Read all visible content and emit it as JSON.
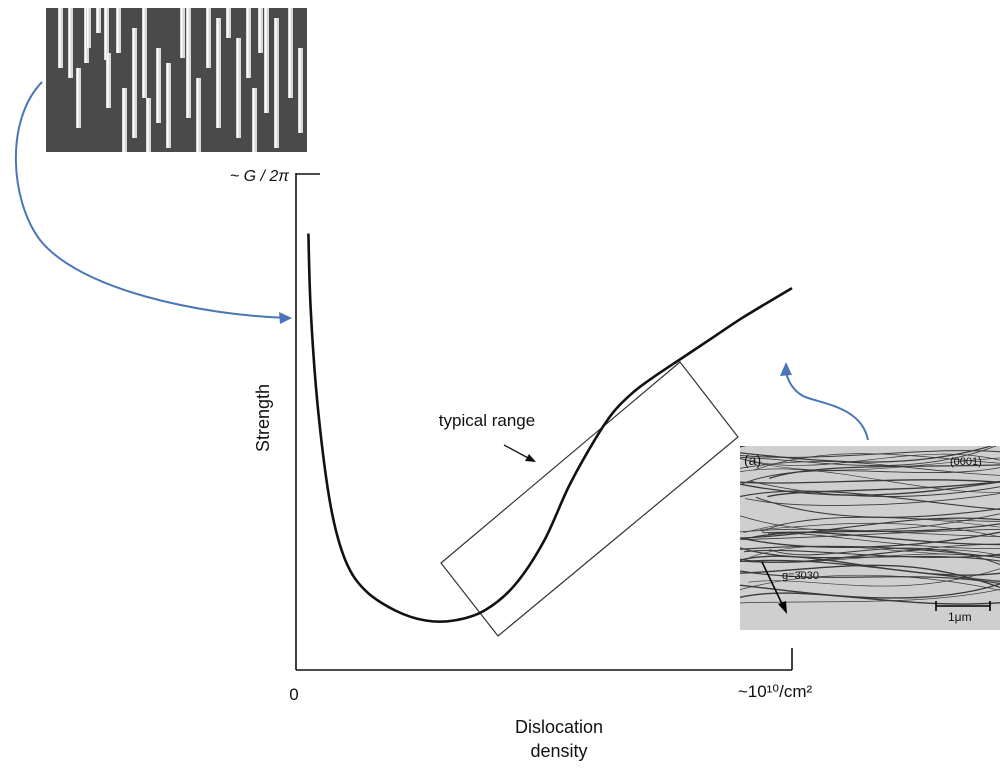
{
  "chart_data": {
    "type": "line",
    "title": "",
    "xlabel": "Dislocation density",
    "xlabel_lines": [
      "Dislocation",
      "density"
    ],
    "ylabel": "Strength",
    "x_tick_start": "0",
    "x_tick_end": "~10¹⁰/cm²",
    "y_tick_top": "~ G / 2π",
    "xlim": [
      0,
      1
    ],
    "ylim": [
      0,
      1
    ],
    "grid": false,
    "legend": "none",
    "series": [
      {
        "x": [
          0.025,
          0.03,
          0.045,
          0.07,
          0.1,
          0.14,
          0.2,
          0.26,
          0.32,
          0.38,
          0.44,
          0.5,
          0.55,
          0.6,
          0.64,
          0.68,
          0.72,
          0.78,
          0.84,
          0.9,
          1.0
        ],
        "y": [
          0.88,
          0.72,
          0.52,
          0.33,
          0.22,
          0.16,
          0.12,
          0.1,
          0.1,
          0.12,
          0.17,
          0.26,
          0.37,
          0.46,
          0.52,
          0.56,
          0.59,
          0.63,
          0.67,
          0.71,
          0.77
        ]
      }
    ],
    "annotations": [
      {
        "text": "typical range",
        "points_to": "box around the rising part of the curve"
      }
    ],
    "colors": {
      "curve": "#111111",
      "connector_arrows": "#4a76b8",
      "box": "#333333"
    }
  },
  "insets": {
    "left_photo": {
      "description_icon": "nanowire-sem-photo-icon"
    },
    "right_photo": {
      "panel_label": "(a)",
      "plane_label": "(0001)",
      "g_vector": "g=3̄030",
      "scale_label": "1μm"
    }
  }
}
